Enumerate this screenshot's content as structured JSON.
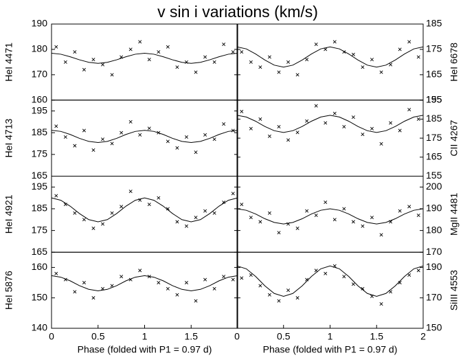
{
  "chart_data": [
    {
      "type": "scatter",
      "title": "v sin i variations (km/s)",
      "ylabel": "HeI 4471",
      "axis_side": "left",
      "xlim": [
        0,
        2
      ],
      "ylim": [
        160,
        190
      ],
      "yticks": [
        160,
        170,
        180,
        190
      ],
      "x": [
        0.05,
        0.15,
        0.25,
        0.35,
        0.45,
        0.55,
        0.65,
        0.75,
        0.85,
        0.95,
        1.05,
        1.15,
        1.25,
        1.35,
        1.45,
        1.55,
        1.65,
        1.75,
        1.85,
        1.95
      ],
      "values": [
        181,
        175,
        179,
        172,
        176,
        174,
        170,
        177,
        180,
        183,
        176,
        179,
        181,
        173,
        175,
        171,
        177,
        175,
        182,
        179
      ],
      "fit_x": [
        0,
        0.1,
        0.2,
        0.3,
        0.4,
        0.5,
        0.6,
        0.7,
        0.8,
        0.9,
        1,
        1.1,
        1.2,
        1.3,
        1.4,
        1.5,
        1.6,
        1.7,
        1.8,
        1.9,
        2
      ],
      "fit_values": [
        178.5,
        178.1,
        177.1,
        175.9,
        174.9,
        174.5,
        174.9,
        175.9,
        177.1,
        178.1,
        178.5,
        178.1,
        177.1,
        175.9,
        174.9,
        174.5,
        174.9,
        175.9,
        177.1,
        178.1,
        178.5
      ]
    },
    {
      "type": "scatter",
      "ylabel": "HeI 6678",
      "axis_side": "right",
      "xlim": [
        0,
        2
      ],
      "ylim": [
        155,
        185
      ],
      "yticks": [
        155,
        165,
        175,
        185
      ],
      "x": [
        0.05,
        0.15,
        0.25,
        0.35,
        0.45,
        0.55,
        0.65,
        0.75,
        0.85,
        0.95,
        1.05,
        1.15,
        1.25,
        1.35,
        1.45,
        1.55,
        1.65,
        1.75,
        1.85,
        1.95
      ],
      "values": [
        174,
        170,
        168,
        172,
        166,
        170,
        165,
        171,
        177,
        175,
        178,
        174,
        173,
        168,
        171,
        166,
        169,
        175,
        178,
        172
      ],
      "fit_x": [
        0,
        0.1,
        0.2,
        0.3,
        0.4,
        0.5,
        0.6,
        0.7,
        0.8,
        0.9,
        1,
        1.1,
        1.2,
        1.3,
        1.4,
        1.5,
        1.6,
        1.7,
        1.8,
        1.9,
        2
      ],
      "fit_values": [
        176,
        175.2,
        173.2,
        170.8,
        168.8,
        168,
        168.8,
        170.8,
        173.2,
        175.2,
        176,
        175.2,
        173.2,
        170.8,
        168.8,
        168,
        168.8,
        170.8,
        173.2,
        175.2,
        176
      ]
    },
    {
      "type": "scatter",
      "ylabel": "HeI 4713",
      "axis_side": "left",
      "xlim": [
        0,
        2
      ],
      "ylim": [
        165,
        200
      ],
      "yticks": [
        165,
        175,
        185,
        195
      ],
      "x": [
        0.05,
        0.15,
        0.25,
        0.35,
        0.45,
        0.55,
        0.65,
        0.75,
        0.85,
        0.95,
        1.05,
        1.15,
        1.25,
        1.35,
        1.45,
        1.55,
        1.65,
        1.75,
        1.85,
        1.95
      ],
      "values": [
        188,
        183,
        179,
        186,
        177,
        182,
        180,
        185,
        190,
        184,
        187,
        185,
        181,
        178,
        183,
        176,
        184,
        182,
        189,
        186
      ],
      "fit_x": [
        0,
        0.1,
        0.2,
        0.3,
        0.4,
        0.5,
        0.6,
        0.7,
        0.8,
        0.9,
        1,
        1.1,
        1.2,
        1.3,
        1.4,
        1.5,
        1.6,
        1.7,
        1.8,
        1.9,
        2
      ],
      "fit_values": [
        186.1,
        185.6,
        184.2,
        182.4,
        181,
        180.5,
        181,
        182.4,
        184.2,
        185.6,
        186.1,
        185.6,
        184.2,
        182.4,
        181,
        180.5,
        181,
        182.4,
        184.2,
        185.6,
        186.1
      ]
    },
    {
      "type": "scatter",
      "ylabel": "CII 4267",
      "axis_side": "right",
      "xlim": [
        0,
        2
      ],
      "ylim": [
        155,
        195
      ],
      "yticks": [
        155,
        165,
        175,
        185,
        195
      ],
      "x": [
        0.05,
        0.15,
        0.25,
        0.35,
        0.45,
        0.55,
        0.65,
        0.75,
        0.85,
        0.95,
        1.05,
        1.15,
        1.25,
        1.35,
        1.45,
        1.55,
        1.65,
        1.75,
        1.85,
        1.95
      ],
      "values": [
        189,
        180,
        185,
        176,
        181,
        174,
        178,
        184,
        192,
        183,
        188,
        181,
        186,
        177,
        180,
        172,
        183,
        179,
        190,
        185
      ],
      "fit_x": [
        0,
        0.1,
        0.2,
        0.3,
        0.4,
        0.5,
        0.6,
        0.7,
        0.8,
        0.9,
        1,
        1.1,
        1.2,
        1.3,
        1.4,
        1.5,
        1.6,
        1.7,
        1.8,
        1.9,
        2
      ],
      "fit_values": [
        187,
        186.1,
        183.9,
        181.1,
        178.9,
        178,
        178.9,
        181.1,
        183.9,
        186.1,
        187,
        186.1,
        183.9,
        181.1,
        178.9,
        178,
        178.9,
        181.1,
        183.9,
        186.1,
        187
      ]
    },
    {
      "type": "scatter",
      "ylabel": "HeI 4921",
      "axis_side": "left",
      "xlim": [
        0,
        2
      ],
      "ylim": [
        165,
        200
      ],
      "yticks": [
        165,
        175,
        185,
        195
      ],
      "x": [
        0.05,
        0.15,
        0.25,
        0.35,
        0.45,
        0.55,
        0.65,
        0.75,
        0.85,
        0.95,
        1.05,
        1.15,
        1.25,
        1.35,
        1.45,
        1.55,
        1.65,
        1.75,
        1.85,
        1.95
      ],
      "values": [
        191,
        187,
        183,
        180,
        176,
        178,
        183,
        186,
        193,
        189,
        187,
        190,
        185,
        179,
        177,
        181,
        184,
        183,
        188,
        192
      ],
      "fit_x": [
        0,
        0.1,
        0.2,
        0.3,
        0.4,
        0.5,
        0.6,
        0.7,
        0.8,
        0.9,
        1,
        1.1,
        1.2,
        1.3,
        1.4,
        1.5,
        1.6,
        1.7,
        1.8,
        1.9,
        2
      ],
      "fit_values": [
        190,
        188.9,
        186.2,
        182.8,
        180,
        179,
        180,
        182.8,
        186.2,
        188.9,
        190,
        188.9,
        186.2,
        182.8,
        180,
        179,
        180,
        182.8,
        186.2,
        188.9,
        190
      ]
    },
    {
      "type": "scatter",
      "ylabel": "MgII 4481",
      "axis_side": "right",
      "xlim": [
        0,
        2
      ],
      "ylim": [
        170,
        205
      ],
      "yticks": [
        170,
        180,
        190,
        200
      ],
      "x": [
        0.05,
        0.15,
        0.25,
        0.35,
        0.45,
        0.55,
        0.65,
        0.75,
        0.85,
        0.95,
        1.05,
        1.15,
        1.25,
        1.35,
        1.45,
        1.55,
        1.65,
        1.75,
        1.85,
        1.95
      ],
      "values": [
        192,
        186,
        184,
        188,
        179,
        183,
        181,
        189,
        187,
        193,
        185,
        190,
        184,
        182,
        186,
        178,
        184,
        189,
        191,
        187
      ],
      "fit_x": [
        0,
        0.1,
        0.2,
        0.3,
        0.4,
        0.5,
        0.6,
        0.7,
        0.8,
        0.9,
        1,
        1.1,
        1.2,
        1.3,
        1.4,
        1.5,
        1.6,
        1.7,
        1.8,
        1.9,
        2
      ],
      "fit_values": [
        190,
        189.3,
        187.6,
        185.4,
        183.7,
        183,
        183.7,
        185.4,
        187.6,
        189.3,
        190,
        189.3,
        187.6,
        185.4,
        183.7,
        183,
        183.7,
        185.4,
        187.6,
        189.3,
        190
      ]
    },
    {
      "type": "scatter",
      "ylabel": "HeI 5876",
      "xlabel": "Phase (folded with P1 = 0.97 d)",
      "axis_side": "left",
      "xlim": [
        0,
        2
      ],
      "xticks": [
        0,
        0.5,
        1,
        1.5
      ],
      "ylim": [
        140,
        165
      ],
      "yticks": [
        140,
        150,
        160
      ],
      "x": [
        0.05,
        0.15,
        0.25,
        0.35,
        0.45,
        0.55,
        0.65,
        0.75,
        0.85,
        0.95,
        1.05,
        1.15,
        1.25,
        1.35,
        1.45,
        1.55,
        1.65,
        1.75,
        1.85,
        1.95
      ],
      "values": [
        158,
        156,
        152,
        155,
        150,
        153,
        154,
        157,
        156,
        159,
        157,
        155,
        153,
        151,
        155,
        149,
        156,
        153,
        157,
        156
      ],
      "fit_x": [
        0,
        0.1,
        0.2,
        0.3,
        0.4,
        0.5,
        0.6,
        0.7,
        0.8,
        0.9,
        1,
        1.1,
        1.2,
        1.3,
        1.4,
        1.5,
        1.6,
        1.7,
        1.8,
        1.9,
        2
      ],
      "fit_values": [
        157.3,
        156.8,
        155.6,
        154,
        152.8,
        152.3,
        152.8,
        154,
        155.6,
        156.8,
        157.3,
        156.8,
        155.6,
        154,
        152.8,
        152.3,
        152.8,
        154,
        155.6,
        156.8,
        157.3
      ]
    },
    {
      "type": "scatter",
      "ylabel": "SiIII 4553",
      "xlabel": "Phase (folded with P1 = 0.97 d)",
      "axis_side": "right",
      "xlim": [
        0,
        2
      ],
      "xticks": [
        0,
        0.5,
        1,
        1.5,
        2
      ],
      "ylim": [
        150,
        200
      ],
      "yticks": [
        150,
        170,
        190
      ],
      "x": [
        0.05,
        0.15,
        0.25,
        0.35,
        0.45,
        0.55,
        0.65,
        0.75,
        0.85,
        0.95,
        1.05,
        1.15,
        1.25,
        1.35,
        1.45,
        1.55,
        1.65,
        1.75,
        1.85,
        1.95
      ],
      "values": [
        183,
        185,
        178,
        172,
        168,
        175,
        170,
        182,
        188,
        186,
        191,
        184,
        179,
        176,
        171,
        166,
        174,
        180,
        185,
        188
      ],
      "fit_x": [
        0,
        0.1,
        0.2,
        0.3,
        0.4,
        0.5,
        0.6,
        0.7,
        0.8,
        0.9,
        1,
        1.1,
        1.2,
        1.3,
        1.4,
        1.5,
        1.6,
        1.7,
        1.8,
        1.9,
        2
      ],
      "fit_values": [
        191,
        189.1,
        184.1,
        177.9,
        172.9,
        171,
        172.9,
        177.9,
        184.1,
        189.1,
        191,
        189.1,
        184.1,
        177.9,
        172.9,
        171,
        172.9,
        177.9,
        184.1,
        189.1,
        191
      ]
    }
  ]
}
